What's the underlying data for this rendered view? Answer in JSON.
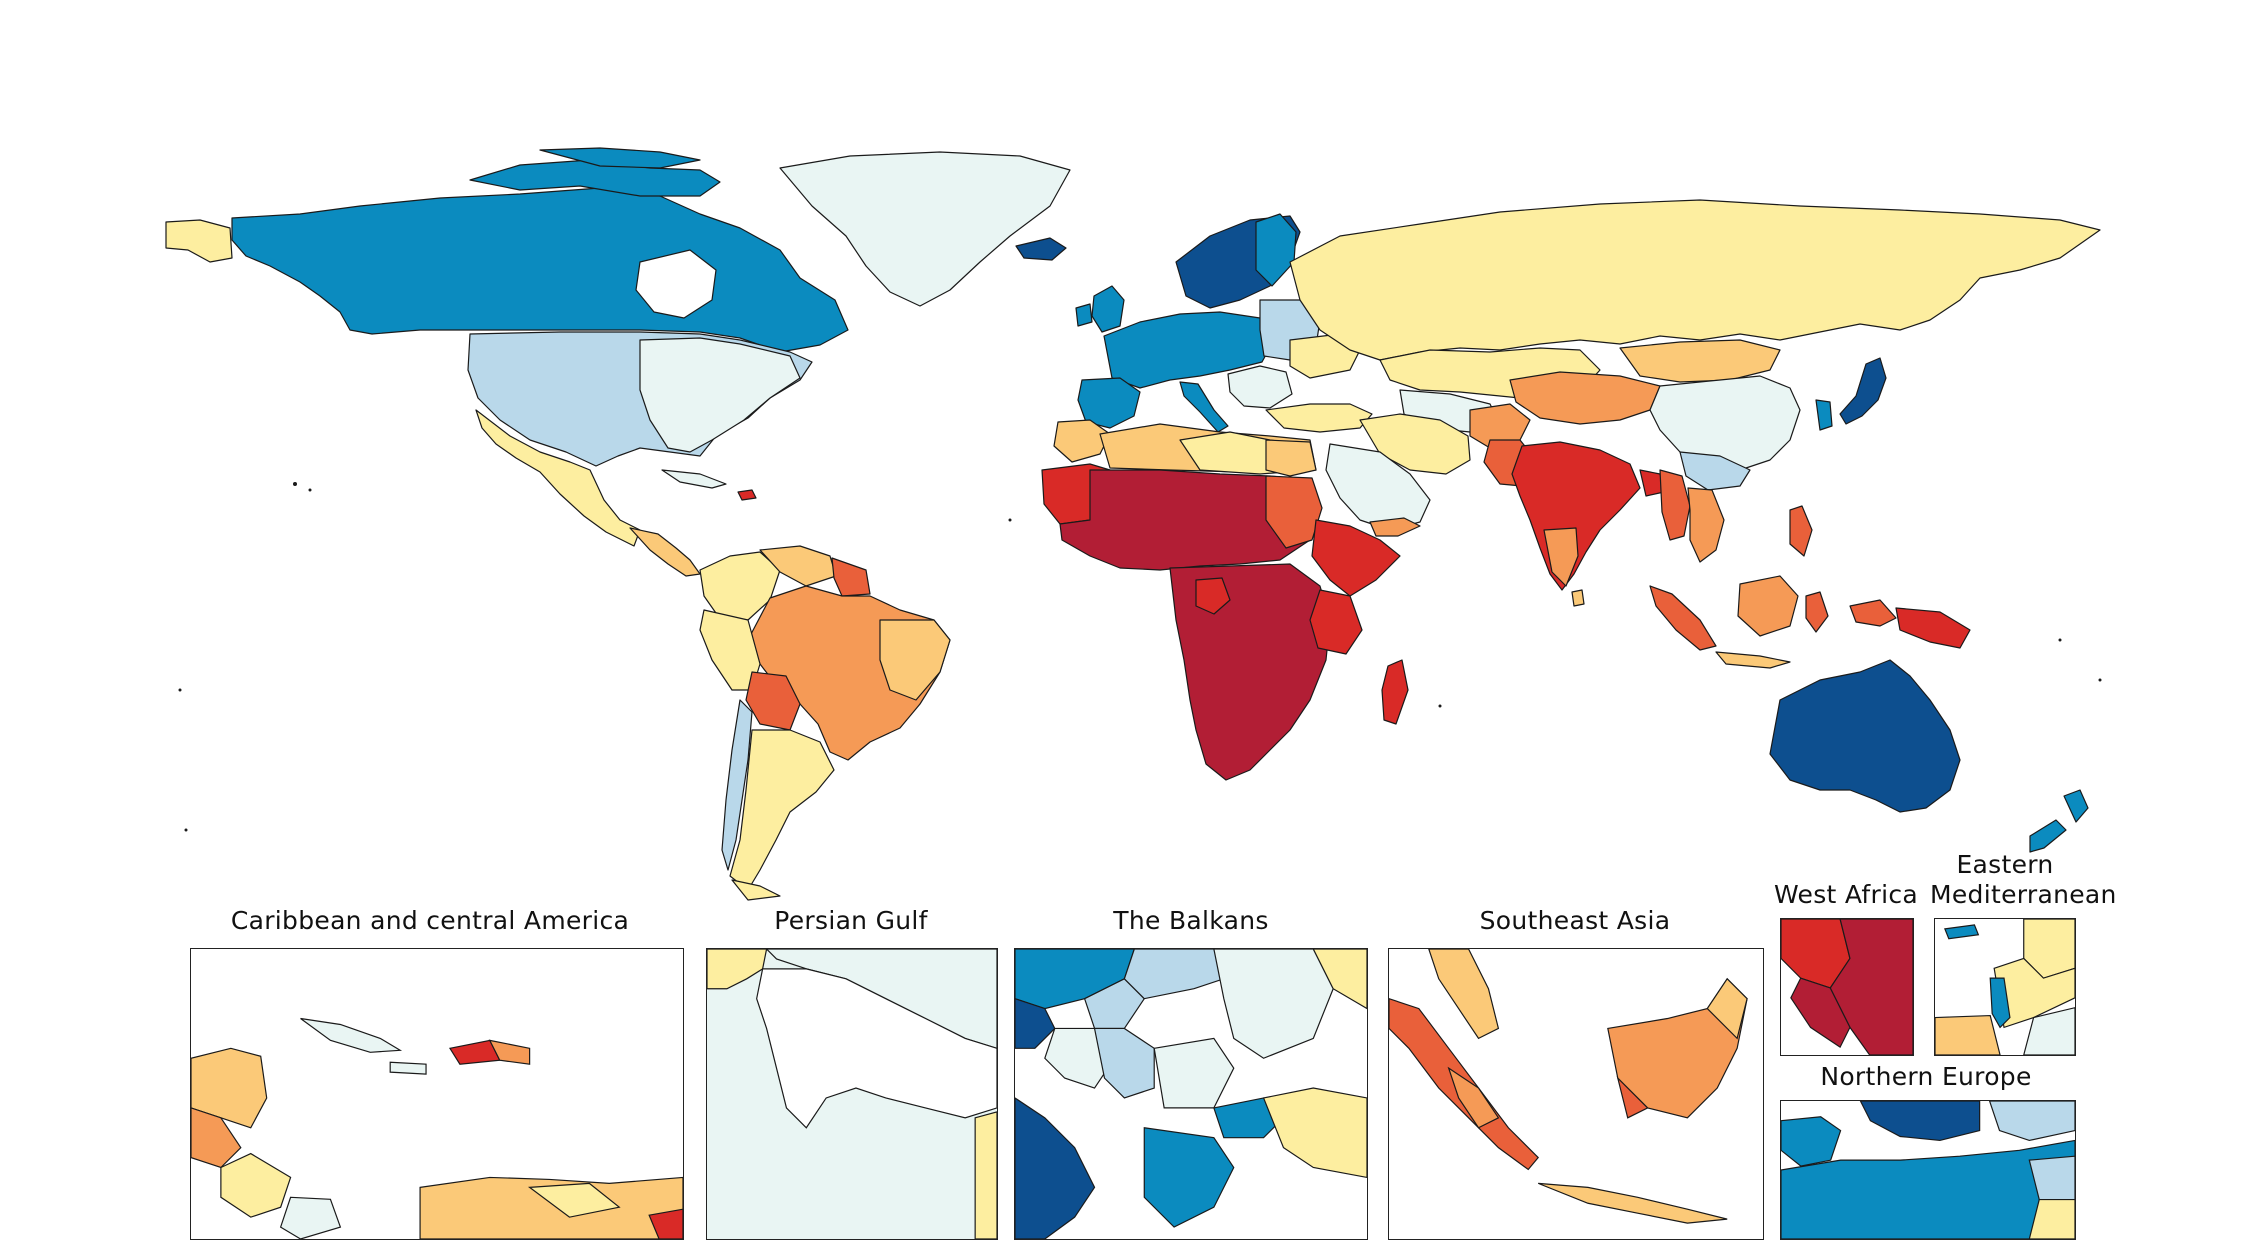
{
  "palette": {
    "c1": "#0d4f8f",
    "c2": "#0b8bbf",
    "c3": "#b9d8ea",
    "c4": "#e9f5f3",
    "c5": "#fdeea0",
    "c6": "#fbc978",
    "c7": "#f59a56",
    "c8": "#e9603a",
    "c9": "#d92a27",
    "c10": "#b21e35",
    "border": "#1a1a1a",
    "ocean": "#ffffff"
  },
  "insets": {
    "caribbean": {
      "title": "Caribbean and central America"
    },
    "persian_gulf": {
      "title": "Persian Gulf"
    },
    "balkans": {
      "title": "The Balkans"
    },
    "southeast_asia": {
      "title": "Southeast Asia"
    },
    "west_africa": {
      "title": "West Africa"
    },
    "eastern_med": {
      "title_line1": "Eastern",
      "title_line2": "Mediterranean"
    },
    "northern_europe": {
      "title": "Northern Europe"
    }
  }
}
